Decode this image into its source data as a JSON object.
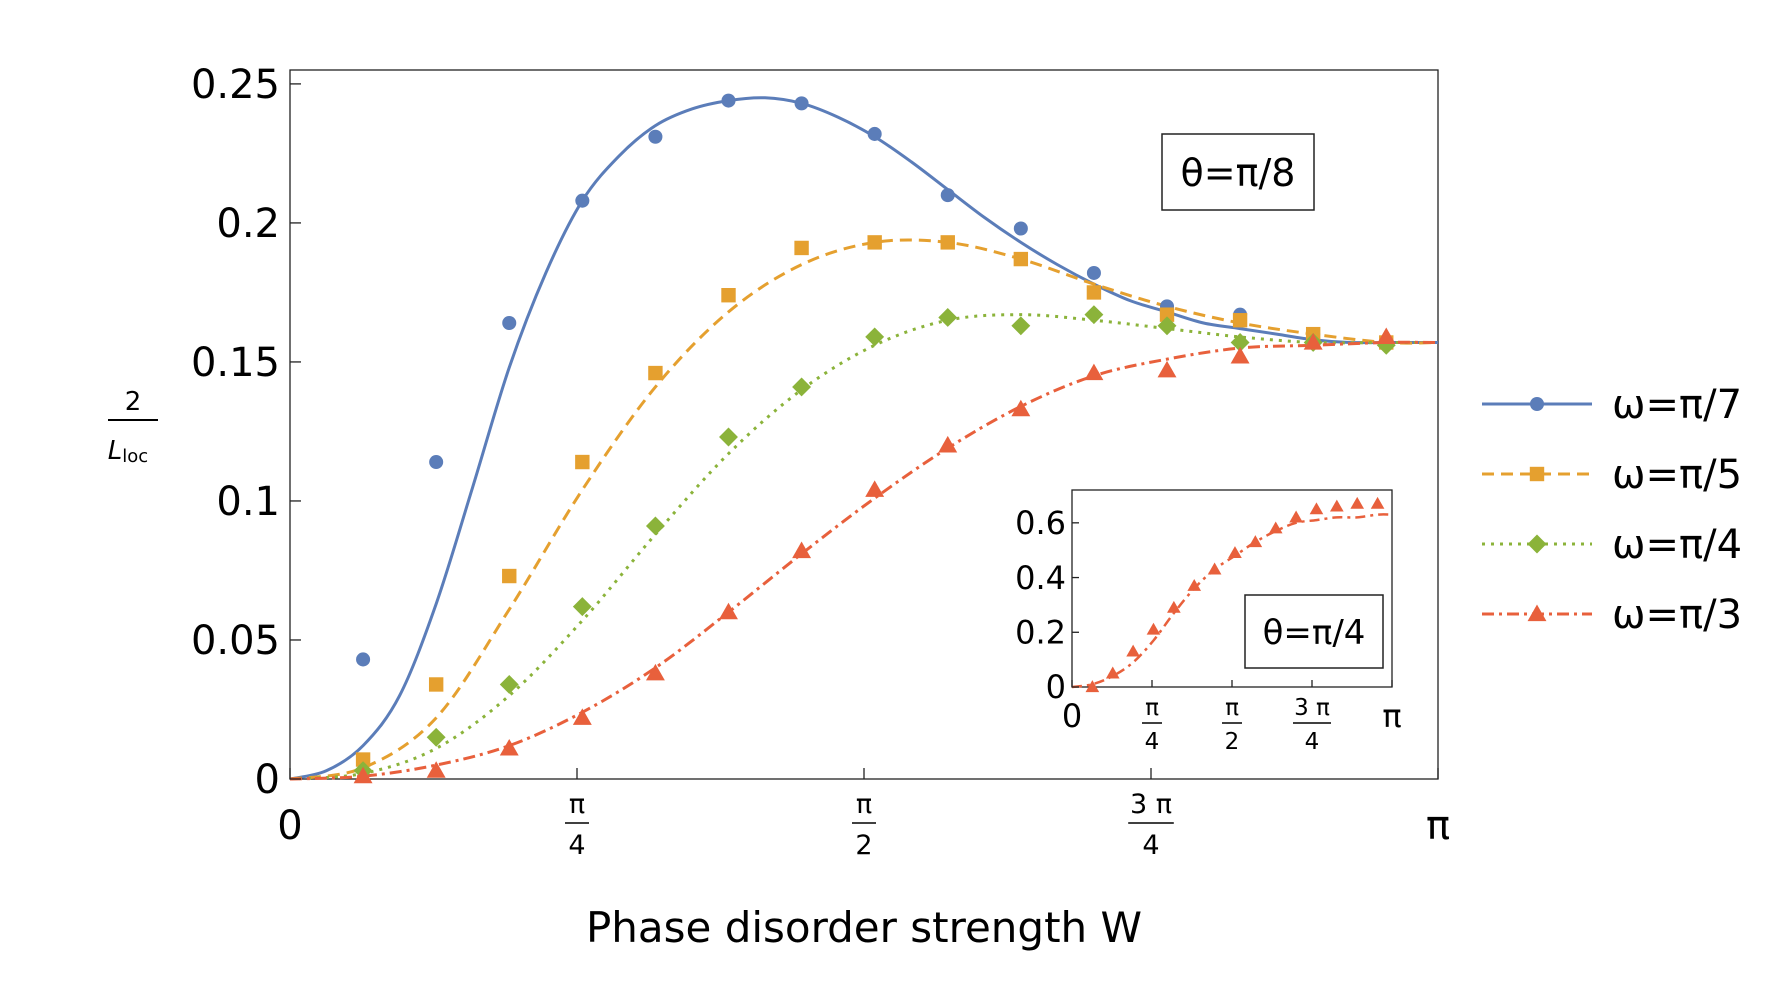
{
  "chart_data": [
    {
      "type": "scatter",
      "annotation": "θ=π/8",
      "xlabel": "Phase disorder strength W",
      "ylabel": {
        "numerator": "2",
        "denominator_main": "L",
        "denominator_sub": "loc"
      },
      "xlim": [
        0,
        3.1416
      ],
      "ylim": [
        0,
        0.255
      ],
      "y_ticks": [
        {
          "value": 0,
          "label": "0"
        },
        {
          "value": 0.05,
          "label": "0.05"
        },
        {
          "value": 0.1,
          "label": "0.1"
        },
        {
          "value": 0.15,
          "label": "0.15"
        },
        {
          "value": 0.2,
          "label": "0.2"
        },
        {
          "value": 0.25,
          "label": "0.25"
        }
      ],
      "x_ticks": [
        {
          "value": 0,
          "label": "0"
        },
        {
          "value": 0.7854,
          "numerator": "π",
          "denominator": "4"
        },
        {
          "value": 1.5708,
          "numerator": "π",
          "denominator": "2"
        },
        {
          "value": 2.3562,
          "numerator": "3 π",
          "denominator": "4"
        },
        {
          "value": 3.1416,
          "label": "π"
        }
      ],
      "series": [
        {
          "name": "ω=π/7",
          "color": "#5B7DB9",
          "marker": "circle",
          "dash": "solid",
          "x": [
            0.2,
            0.4,
            0.6,
            0.8,
            1.0,
            1.2,
            1.4,
            1.6,
            1.8,
            2.0,
            2.2,
            2.4,
            2.6,
            2.8,
            3.0
          ],
          "values": [
            0.043,
            0.114,
            0.164,
            0.208,
            0.231,
            0.244,
            0.243,
            0.232,
            0.21,
            0.198,
            0.182,
            0.17,
            0.167,
            0.16,
            0.157
          ],
          "curve_x": [
            0,
            0.1,
            0.2,
            0.3,
            0.4,
            0.5,
            0.6,
            0.7,
            0.8,
            0.9,
            1.0,
            1.1,
            1.2,
            1.3,
            1.4,
            1.5,
            1.6,
            1.7,
            1.8,
            1.9,
            2.0,
            2.1,
            2.2,
            2.3,
            2.4,
            2.5,
            2.6,
            2.7,
            2.8,
            2.9,
            3.0,
            3.1416
          ],
          "curve_y": [
            0,
            0.003,
            0.012,
            0.03,
            0.063,
            0.105,
            0.148,
            0.182,
            0.208,
            0.224,
            0.235,
            0.241,
            0.244,
            0.245,
            0.243,
            0.238,
            0.231,
            0.222,
            0.212,
            0.202,
            0.193,
            0.185,
            0.178,
            0.172,
            0.168,
            0.164,
            0.162,
            0.16,
            0.158,
            0.157,
            0.157,
            0.157
          ]
        },
        {
          "name": "ω=π/5",
          "color": "#E5A02F",
          "marker": "square",
          "dash": "12,7",
          "x": [
            0.2,
            0.4,
            0.6,
            0.8,
            1.0,
            1.2,
            1.4,
            1.6,
            1.8,
            2.0,
            2.2,
            2.4,
            2.6,
            2.8,
            3.0
          ],
          "values": [
            0.007,
            0.034,
            0.073,
            0.114,
            0.146,
            0.174,
            0.191,
            0.193,
            0.193,
            0.187,
            0.175,
            0.167,
            0.165,
            0.16,
            0.157
          ],
          "curve_x": [
            0,
            0.2,
            0.4,
            0.6,
            0.8,
            1.0,
            1.2,
            1.4,
            1.6,
            1.8,
            2.0,
            2.2,
            2.4,
            2.6,
            2.8,
            3.0,
            3.1416
          ],
          "curve_y": [
            0,
            0.004,
            0.022,
            0.061,
            0.104,
            0.141,
            0.168,
            0.185,
            0.193,
            0.193,
            0.187,
            0.178,
            0.17,
            0.164,
            0.16,
            0.157,
            0.157
          ]
        },
        {
          "name": "ω=π/4",
          "color": "#8BB33A",
          "marker": "diamond",
          "dash": "3,6",
          "x": [
            0.2,
            0.4,
            0.6,
            0.8,
            1.0,
            1.2,
            1.4,
            1.6,
            1.8,
            2.0,
            2.2,
            2.4,
            2.6,
            2.8,
            3.0
          ],
          "values": [
            0.003,
            0.015,
            0.034,
            0.062,
            0.091,
            0.123,
            0.141,
            0.159,
            0.166,
            0.163,
            0.167,
            0.163,
            0.157,
            0.157,
            0.156
          ],
          "curve_x": [
            0,
            0.2,
            0.4,
            0.6,
            0.8,
            1.0,
            1.2,
            1.4,
            1.6,
            1.8,
            2.0,
            2.2,
            2.4,
            2.6,
            2.8,
            3.0,
            3.1416
          ],
          "curve_y": [
            0,
            0.002,
            0.011,
            0.03,
            0.057,
            0.088,
            0.117,
            0.14,
            0.156,
            0.165,
            0.167,
            0.165,
            0.162,
            0.159,
            0.157,
            0.157,
            0.157
          ]
        },
        {
          "name": "ω=π/3",
          "color": "#E8603C",
          "marker": "triangle",
          "dash": "12,5,3,5",
          "x": [
            0.2,
            0.4,
            0.6,
            0.8,
            1.0,
            1.2,
            1.4,
            1.6,
            1.8,
            2.0,
            2.2,
            2.4,
            2.6,
            2.8,
            3.0
          ],
          "values": [
            0.001,
            0.003,
            0.011,
            0.022,
            0.038,
            0.06,
            0.082,
            0.104,
            0.12,
            0.133,
            0.146,
            0.147,
            0.152,
            0.157,
            0.159
          ],
          "curve_x": [
            0,
            0.2,
            0.4,
            0.6,
            0.8,
            1.0,
            1.2,
            1.4,
            1.6,
            1.8,
            2.0,
            2.2,
            2.4,
            2.6,
            2.8,
            3.0,
            3.1416
          ],
          "curve_y": [
            0,
            0.001,
            0.005,
            0.012,
            0.024,
            0.04,
            0.06,
            0.081,
            0.101,
            0.119,
            0.134,
            0.145,
            0.151,
            0.155,
            0.156,
            0.157,
            0.157
          ]
        }
      ]
    },
    {
      "type": "scatter",
      "annotation": "θ=π/4",
      "xlim": [
        0,
        3.1416
      ],
      "ylim": [
        0,
        0.72
      ],
      "y_ticks": [
        {
          "value": 0,
          "label": "0"
        },
        {
          "value": 0.2,
          "label": "0.2"
        },
        {
          "value": 0.4,
          "label": "0.4"
        },
        {
          "value": 0.6,
          "label": "0.6"
        }
      ],
      "x_ticks": [
        {
          "value": 0,
          "label": "0"
        },
        {
          "value": 0.7854,
          "numerator": "π",
          "denominator": "4"
        },
        {
          "value": 1.5708,
          "numerator": "π",
          "denominator": "2"
        },
        {
          "value": 2.3562,
          "numerator": "3 π",
          "denominator": "4"
        },
        {
          "value": 3.1416,
          "label": "π"
        }
      ],
      "series": [
        {
          "name": "ω=π/3",
          "color": "#E8603C",
          "marker": "triangle",
          "dash": "10,5,3,5",
          "x": [
            0.2,
            0.4,
            0.6,
            0.8,
            1.0,
            1.2,
            1.4,
            1.6,
            1.8,
            2.0,
            2.2,
            2.4,
            2.6,
            2.8,
            3.0
          ],
          "values": [
            0.0,
            0.05,
            0.13,
            0.21,
            0.29,
            0.37,
            0.43,
            0.49,
            0.53,
            0.58,
            0.62,
            0.65,
            0.66,
            0.67,
            0.67
          ],
          "curve_x": [
            0,
            0.2,
            0.4,
            0.6,
            0.8,
            1.0,
            1.2,
            1.4,
            1.6,
            1.8,
            2.0,
            2.2,
            2.4,
            2.6,
            2.8,
            3.0,
            3.1416
          ],
          "curve_y": [
            0,
            0.01,
            0.04,
            0.09,
            0.17,
            0.27,
            0.36,
            0.43,
            0.48,
            0.53,
            0.57,
            0.6,
            0.61,
            0.62,
            0.62,
            0.63,
            0.63
          ]
        }
      ]
    }
  ]
}
